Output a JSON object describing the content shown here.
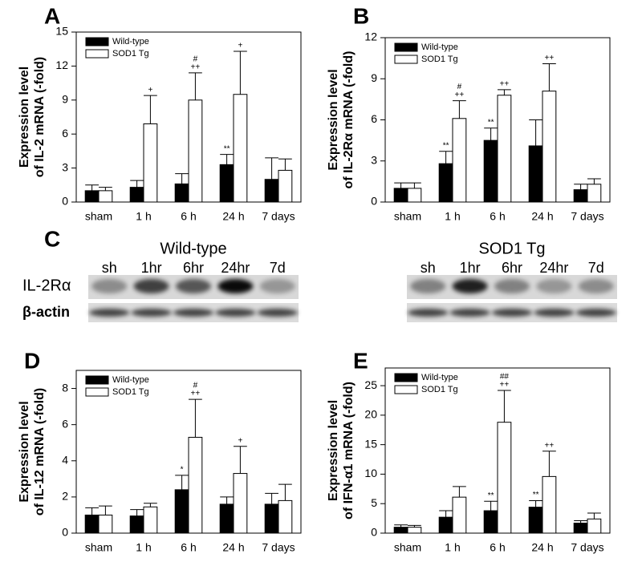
{
  "chart_data": [
    {
      "type": "bar",
      "panel": "A",
      "ylabel": [
        "Expression level",
        "of IL-2 mRNA (-fold)"
      ],
      "categories": [
        "sham",
        "1 h",
        "6 h",
        "24 h",
        "7 days"
      ],
      "ylim": [
        0,
        15
      ],
      "yticks": [
        0,
        3,
        6,
        9,
        12,
        15
      ],
      "series": [
        {
          "name": "Wild-type",
          "color": "#000000",
          "values": [
            1.0,
            1.3,
            1.6,
            3.3,
            2.0
          ],
          "errors": [
            0.5,
            0.6,
            0.9,
            0.9,
            1.9
          ],
          "annotations": [
            null,
            null,
            null,
            [
              "**"
            ],
            null
          ]
        },
        {
          "name": "SOD1 Tg",
          "color": "#ffffff",
          "values": [
            1.0,
            6.9,
            9.0,
            9.5,
            2.8
          ],
          "errors": [
            0.3,
            2.5,
            2.4,
            3.8,
            1.0
          ],
          "annotations": [
            null,
            [
              "+"
            ],
            [
              "#",
              "++"
            ],
            [
              "+"
            ],
            null
          ]
        }
      ]
    },
    {
      "type": "bar",
      "panel": "B",
      "ylabel": [
        "Expression level",
        "of  IL-2Rα mRNA (-fold)"
      ],
      "categories": [
        "sham",
        "1 h",
        "6 h",
        "24 h",
        "7 days"
      ],
      "ylim": [
        0,
        12
      ],
      "yticks": [
        0,
        3,
        6,
        9,
        12
      ],
      "series": [
        {
          "name": "Wild-type",
          "color": "#000000",
          "values": [
            1.0,
            2.8,
            4.5,
            4.1,
            0.9
          ],
          "errors": [
            0.4,
            0.9,
            0.9,
            1.9,
            0.4
          ],
          "annotations": [
            null,
            [
              "**"
            ],
            [
              "**"
            ],
            null,
            null
          ]
        },
        {
          "name": "SOD1 Tg",
          "color": "#ffffff",
          "values": [
            1.0,
            6.1,
            7.8,
            8.1,
            1.3
          ],
          "errors": [
            0.4,
            1.3,
            0.4,
            2.0,
            0.4
          ],
          "annotations": [
            null,
            [
              "#",
              "++"
            ],
            [
              "++"
            ],
            [
              "++"
            ],
            null
          ]
        }
      ]
    },
    {
      "type": "bar",
      "panel": "D",
      "ylabel": [
        "Expression level",
        "of IL-12 mRNA (-fold)"
      ],
      "categories": [
        "sham",
        "1 h",
        "6 h",
        "24 h",
        "7 days"
      ],
      "ylim": [
        0,
        9
      ],
      "yticks": [
        0,
        2,
        4,
        6,
        8
      ],
      "series": [
        {
          "name": "Wild-type",
          "color": "#000000",
          "values": [
            1.0,
            0.95,
            2.4,
            1.6,
            1.6
          ],
          "errors": [
            0.4,
            0.35,
            0.8,
            0.4,
            0.6
          ],
          "annotations": [
            null,
            null,
            [
              "*"
            ],
            null,
            null
          ]
        },
        {
          "name": "SOD1 Tg",
          "color": "#ffffff",
          "values": [
            1.0,
            1.45,
            5.3,
            3.3,
            1.8
          ],
          "errors": [
            0.5,
            0.2,
            2.1,
            1.5,
            0.9
          ],
          "annotations": [
            null,
            null,
            [
              "#",
              "++"
            ],
            [
              "+"
            ],
            null
          ]
        }
      ]
    },
    {
      "type": "bar",
      "panel": "E",
      "ylabel": [
        "Expression level",
        "of IFN-α1 mRNA (-fold)"
      ],
      "categories": [
        "sham",
        "1 h",
        "6 h",
        "24 h",
        "7 days"
      ],
      "ylim": [
        0,
        28
      ],
      "yticks": [
        0,
        5,
        10,
        15,
        20,
        25
      ],
      "series": [
        {
          "name": "Wild-type",
          "color": "#000000",
          "values": [
            1.0,
            2.7,
            3.8,
            4.4,
            1.7
          ],
          "errors": [
            0.4,
            1.1,
            1.6,
            1.1,
            0.4
          ],
          "annotations": [
            null,
            null,
            [
              "**"
            ],
            [
              "**"
            ],
            null
          ]
        },
        {
          "name": "SOD1 Tg",
          "color": "#ffffff",
          "values": [
            1.0,
            6.1,
            18.8,
            9.6,
            2.4
          ],
          "errors": [
            0.3,
            1.8,
            5.4,
            4.3,
            1.0
          ],
          "annotations": [
            null,
            null,
            [
              "##",
              "++"
            ],
            [
              "++"
            ],
            null
          ]
        }
      ]
    }
  ],
  "blot": {
    "panel": "C",
    "groups": [
      {
        "title": "Wild-type",
        "lanes": [
          "sh",
          "1hr",
          "6hr",
          "24hr",
          "7d"
        ]
      },
      {
        "title": "SOD1 Tg",
        "lanes": [
          "sh",
          "1hr",
          "6hr",
          "24hr",
          "7d"
        ]
      }
    ],
    "rows": [
      "IL-2Rα",
      "β-actin"
    ]
  }
}
